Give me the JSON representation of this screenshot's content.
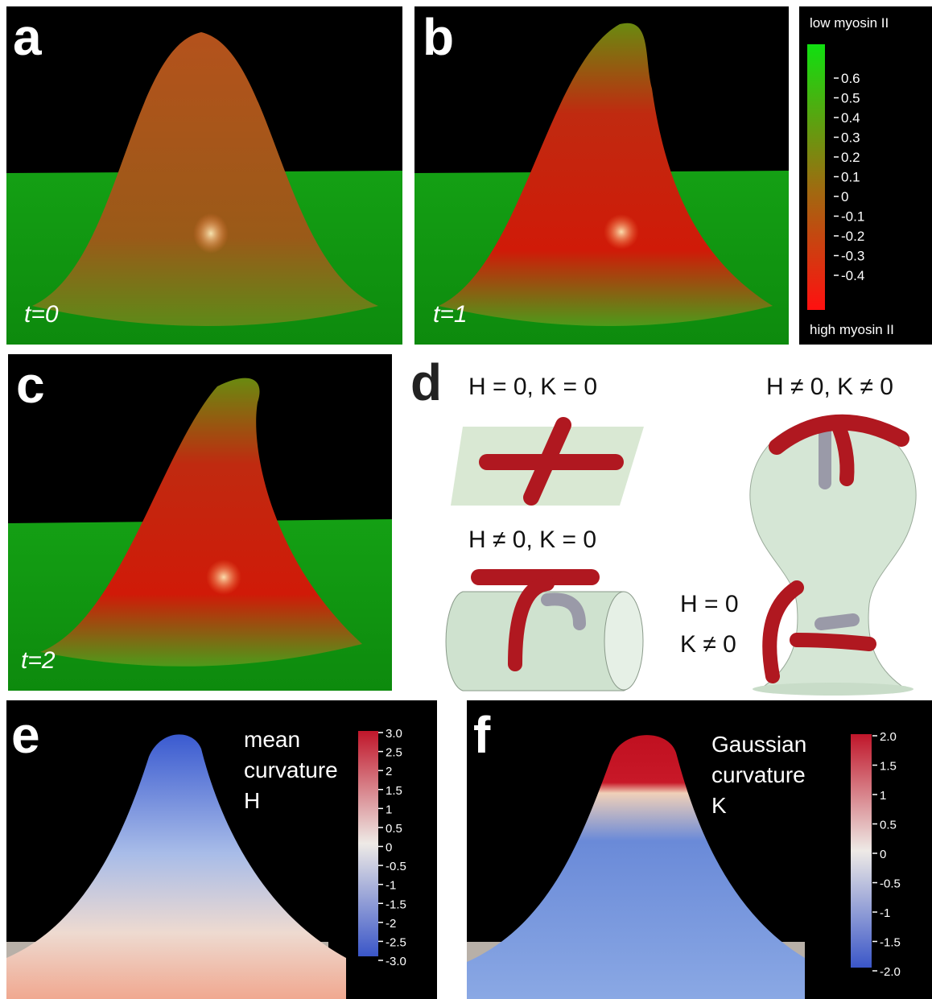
{
  "panels": {
    "a": {
      "label": "a",
      "time": "t=0"
    },
    "b": {
      "label": "b",
      "time": "t=1"
    },
    "c": {
      "label": "c",
      "time": "t=2"
    },
    "colorbar": {
      "top": "low myosin II",
      "bottom": "high myosin II",
      "ticks": [
        "0.6",
        "0.5",
        "0.4",
        "0.3",
        "0.2",
        "0.1",
        "0",
        "-0.1",
        "-0.2",
        "-0.3",
        "-0.4"
      ]
    },
    "d": {
      "label": "d",
      "flat": "H = 0, K = 0",
      "cylinder": "H ≠ 0, K = 0",
      "sphere": "H ≠ 0, K ≠ 0",
      "saddle_h": "H = 0",
      "saddle_k": "K ≠ 0"
    },
    "e": {
      "label": "e",
      "title": [
        "mean",
        "curvature",
        "H"
      ],
      "ticks": [
        "3.0",
        "2.5",
        "2",
        "1.5",
        "1",
        "0.5",
        "0",
        "-0.5",
        "-1",
        "-1.5",
        "-2",
        "-2.5",
        "-3.0"
      ]
    },
    "f": {
      "label": "f",
      "title": [
        "Gaussian",
        "curvature",
        "K"
      ],
      "ticks": [
        "2.0",
        "1.5",
        "1",
        "0.5",
        "0",
        "-0.5",
        "-1",
        "-1.5",
        "-2.0"
      ]
    }
  }
}
